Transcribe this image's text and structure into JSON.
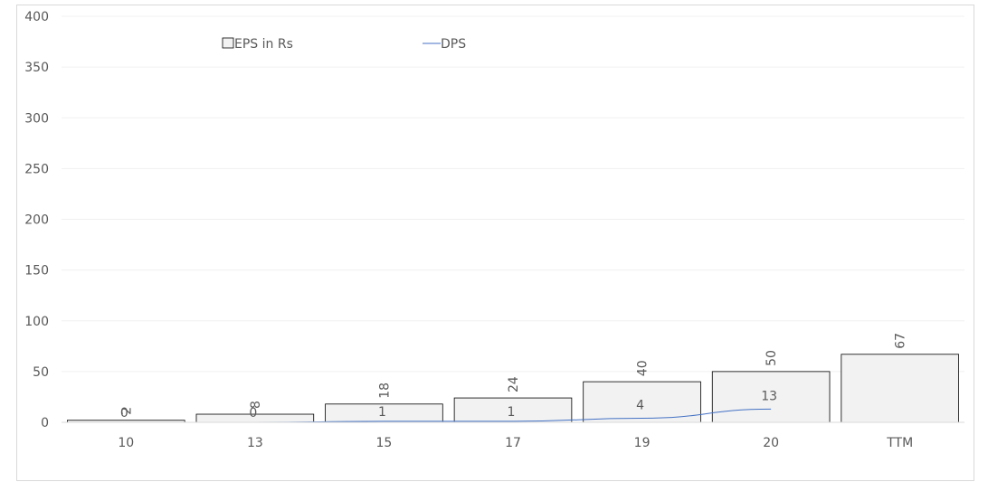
{
  "chart_data": {
    "type": "bar",
    "categories": [
      "10",
      "13",
      "15",
      "17",
      "19",
      "20",
      "TTM"
    ],
    "series": [
      {
        "name": "EPS in Rs",
        "kind": "bar",
        "values": [
          2,
          8,
          18,
          24,
          40,
          50,
          67
        ],
        "labels": [
          "2",
          "8",
          "18",
          "24",
          "40",
          "50",
          "67"
        ],
        "color": "#f2f2f2",
        "stroke": "#000000"
      },
      {
        "name": "DPS",
        "kind": "line",
        "values": [
          0,
          0,
          1,
          1,
          4,
          13,
          null
        ],
        "labels": [
          "0",
          "0",
          "1",
          "1",
          "4",
          "13",
          null
        ],
        "color": "#4472c4"
      }
    ],
    "y_ticks": [
      "0",
      "50",
      "100",
      "150",
      "200",
      "250",
      "300",
      "350",
      "400"
    ],
    "ylim": [
      0,
      400
    ],
    "grid": true,
    "legend_position": "top"
  }
}
